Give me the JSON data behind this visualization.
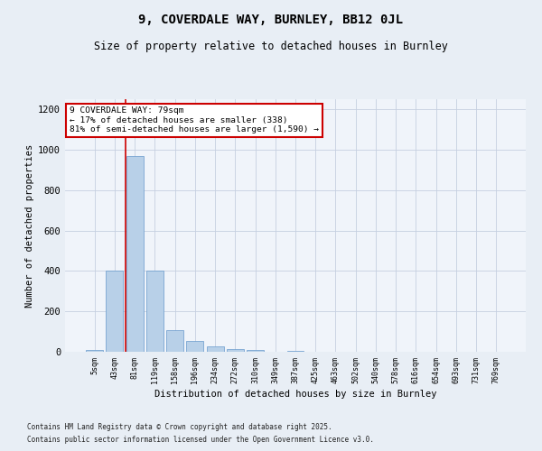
{
  "title": "9, COVERDALE WAY, BURNLEY, BB12 0JL",
  "subtitle": "Size of property relative to detached houses in Burnley",
  "xlabel": "Distribution of detached houses by size in Burnley",
  "ylabel": "Number of detached properties",
  "bar_color": "#b8d0e8",
  "bar_edge_color": "#6699cc",
  "background_color": "#e8eef5",
  "plot_bg_color": "#f0f4fa",
  "grid_color": "#c5cfe0",
  "vline_color": "#cc0000",
  "vline_x": 1.55,
  "annotation_line1": "9 COVERDALE WAY: 79sqm",
  "annotation_line2": "← 17% of detached houses are smaller (338)",
  "annotation_line3": "81% of semi-detached houses are larger (1,590) →",
  "annotation_box_color": "#ffffff",
  "annotation_edge_color": "#cc0000",
  "categories": [
    "5sqm",
    "43sqm",
    "81sqm",
    "119sqm",
    "158sqm",
    "196sqm",
    "234sqm",
    "272sqm",
    "310sqm",
    "349sqm",
    "387sqm",
    "425sqm",
    "463sqm",
    "502sqm",
    "540sqm",
    "578sqm",
    "616sqm",
    "654sqm",
    "693sqm",
    "731sqm",
    "769sqm"
  ],
  "values": [
    10,
    400,
    970,
    400,
    105,
    55,
    25,
    12,
    8,
    0,
    5,
    0,
    0,
    0,
    0,
    0,
    0,
    0,
    0,
    0,
    0
  ],
  "ylim": [
    0,
    1250
  ],
  "yticks": [
    0,
    200,
    400,
    600,
    800,
    1000,
    1200
  ],
  "footnote1": "Contains HM Land Registry data © Crown copyright and database right 2025.",
  "footnote2": "Contains public sector information licensed under the Open Government Licence v3.0.",
  "figsize": [
    6.0,
    5.0
  ],
  "dpi": 100
}
